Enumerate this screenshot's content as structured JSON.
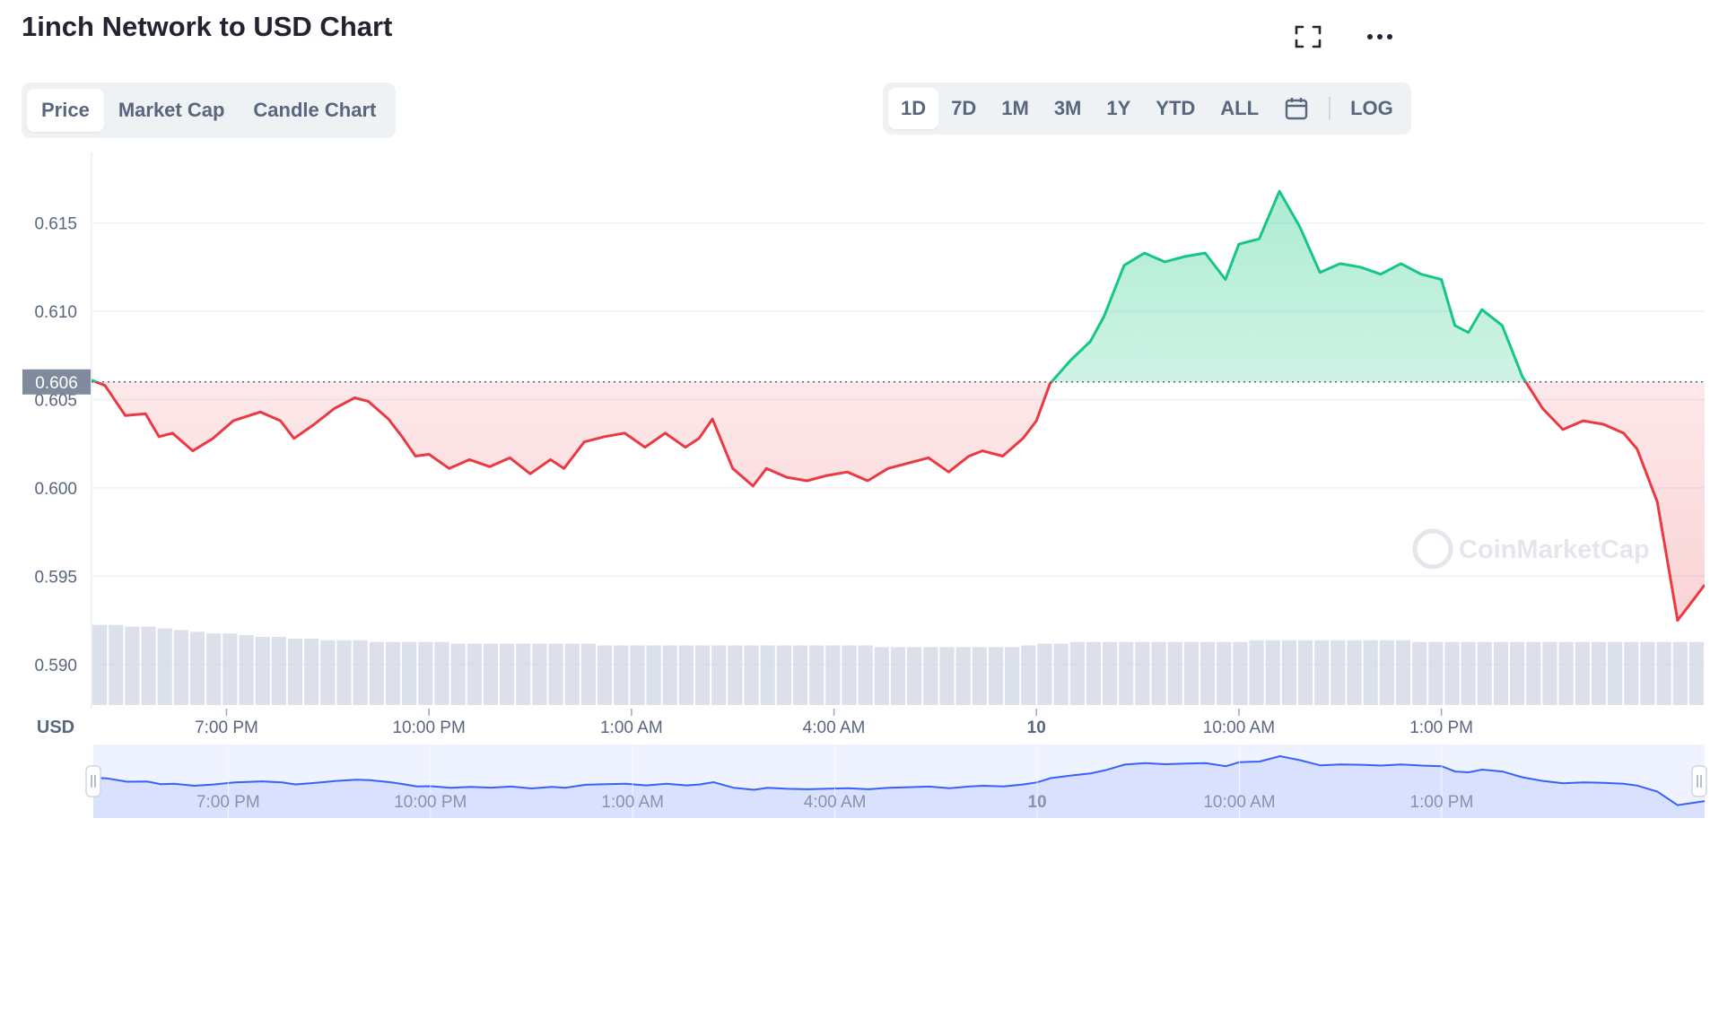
{
  "title": "1inch Network to USD Chart",
  "chart_tabs": [
    "Price",
    "Market Cap",
    "Candle Chart"
  ],
  "active_chart_tab": "Price",
  "range_tabs": [
    "1D",
    "7D",
    "1M",
    "3M",
    "1Y",
    "YTD",
    "ALL"
  ],
  "active_range_tab": "1D",
  "log_label": "LOG",
  "icons": {
    "fullscreen": "fullscreen-icon",
    "more": "more-icon",
    "calendar": "calendar-icon"
  },
  "colors": {
    "up": "#16c784",
    "down": "#ea3943",
    "navigator": "#3861fb"
  },
  "chart_data": {
    "type": "line",
    "currency_label": "USD",
    "reference_price": 0.606,
    "reference_label": "0.606",
    "ylim": [
      0.5875,
      0.6195
    ],
    "yticks": [
      "0.615",
      "0.610",
      "0.605",
      "0.600",
      "0.595",
      "0.590"
    ],
    "ytick_values": [
      0.615,
      0.61,
      0.605,
      0.6,
      0.595,
      0.59
    ],
    "x_labels": [
      "7:00 PM",
      "10:00 PM",
      "1:00 AM",
      "4:00 AM",
      "10",
      "10:00 AM",
      "1:00 PM"
    ],
    "x_label_hours": [
      2,
      5,
      8,
      11,
      14,
      17,
      20
    ],
    "x_range_hours": [
      0,
      23.9
    ],
    "watermark": "CoinMarketCap",
    "series": [
      {
        "t": [
          0,
          0.2,
          0.5,
          0.8,
          1,
          1.2,
          1.5,
          1.8,
          2.1,
          2.5,
          2.8,
          3,
          3.3,
          3.6,
          3.9,
          4.1,
          4.4,
          4.6,
          4.8,
          5,
          5.3,
          5.6,
          5.9,
          6.2,
          6.5,
          6.8,
          7,
          7.3,
          7.6,
          7.9,
          8.2,
          8.5,
          8.8,
          9,
          9.2,
          9.5,
          9.8,
          10,
          10.3,
          10.6,
          10.9,
          11.2,
          11.5,
          11.8,
          12.1,
          12.4,
          12.7,
          13,
          13.2,
          13.5,
          13.8,
          14,
          14.2,
          14.5,
          14.8,
          15,
          15.3,
          15.6,
          15.9,
          16.2,
          16.5,
          16.8,
          17,
          17.3,
          17.6,
          17.9,
          18.2,
          18.5,
          18.8,
          19.1,
          19.4,
          19.7,
          20,
          20.2,
          20.4,
          20.6,
          20.9,
          21.2,
          21.5,
          21.8,
          22.1,
          22.4,
          22.7,
          22.9,
          23.2,
          23.5,
          23.7,
          23.9
        ],
        "y": [
          0.6061,
          0.6058,
          0.6041,
          0.6042,
          0.6029,
          0.6031,
          0.6021,
          0.6028,
          0.6038,
          0.6043,
          0.6038,
          0.6028,
          0.6036,
          0.6045,
          0.6051,
          0.6049,
          0.6039,
          0.6029,
          0.6018,
          0.6019,
          0.6011,
          0.6016,
          0.6012,
          0.6017,
          0.6008,
          0.6016,
          0.6011,
          0.6026,
          0.6029,
          0.6031,
          0.6023,
          0.6031,
          0.6023,
          0.6028,
          0.6039,
          0.6011,
          0.6001,
          0.6011,
          0.6006,
          0.6004,
          0.6007,
          0.6009,
          0.6004,
          0.6011,
          0.6014,
          0.6017,
          0.6009,
          0.6018,
          0.6021,
          0.6018,
          0.6028,
          0.6038,
          0.6059,
          0.6072,
          0.6083,
          0.6097,
          0.6126,
          0.6133,
          0.6128,
          0.6131,
          0.6133,
          0.6118,
          0.6138,
          0.6141,
          0.6168,
          0.6148,
          0.6122,
          0.6127,
          0.6125,
          0.6121,
          0.6127,
          0.6121,
          0.6118,
          0.6092,
          0.6088,
          0.6101,
          0.6092,
          0.6063,
          0.6045,
          0.6033,
          0.6038,
          0.6036,
          0.6031,
          0.6022,
          0.5992,
          0.5925,
          0.5935,
          0.5945
        ]
      }
    ],
    "volume": [
      0.47,
      0.47,
      0.46,
      0.46,
      0.45,
      0.44,
      0.43,
      0.42,
      0.42,
      0.41,
      0.4,
      0.4,
      0.39,
      0.39,
      0.38,
      0.38,
      0.38,
      0.37,
      0.37,
      0.37,
      0.37,
      0.37,
      0.36,
      0.36,
      0.36,
      0.36,
      0.36,
      0.36,
      0.36,
      0.36,
      0.36,
      0.35,
      0.35,
      0.35,
      0.35,
      0.35,
      0.35,
      0.35,
      0.35,
      0.35,
      0.35,
      0.35,
      0.35,
      0.35,
      0.35,
      0.35,
      0.35,
      0.35,
      0.34,
      0.34,
      0.34,
      0.34,
      0.34,
      0.34,
      0.34,
      0.34,
      0.34,
      0.35,
      0.36,
      0.36,
      0.37,
      0.37,
      0.37,
      0.37,
      0.37,
      0.37,
      0.37,
      0.37,
      0.37,
      0.37,
      0.37,
      0.38,
      0.38,
      0.38,
      0.38,
      0.38,
      0.38,
      0.38,
      0.38,
      0.38,
      0.38,
      0.37,
      0.37,
      0.37,
      0.37,
      0.37,
      0.37,
      0.37,
      0.37,
      0.37,
      0.37,
      0.37,
      0.37,
      0.37,
      0.37,
      0.37,
      0.37,
      0.37,
      0.37
    ],
    "grid": true
  }
}
